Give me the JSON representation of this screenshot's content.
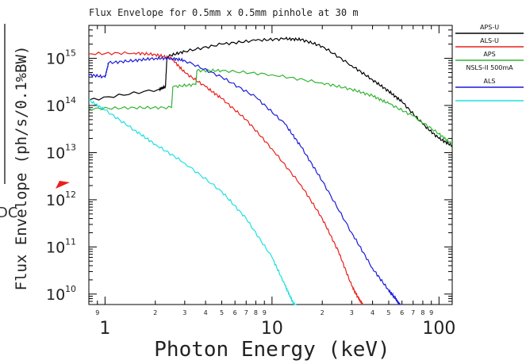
{
  "chart_data": {
    "type": "line",
    "title": "Flux Envelope for 0.5mm x 0.5mm pinhole at 30 m",
    "xlabel": "Photon Energy (keV)",
    "ylabel": "Flux Envelope (ph/s/0.1%BW)",
    "xscale": "log",
    "yscale": "log",
    "xlim": [
      0.8,
      120
    ],
    "ylim": [
      6000000000.0,
      5000000000000000.0
    ],
    "x_major_ticks": [
      {
        "value": 1,
        "label": "1"
      },
      {
        "value": 10,
        "label": "10"
      },
      {
        "value": 100,
        "label": "100"
      }
    ],
    "x_minor_ticks": [
      {
        "value": 0.9,
        "label": "9"
      },
      {
        "value": 2,
        "label": "2"
      },
      {
        "value": 3,
        "label": "3"
      },
      {
        "value": 4,
        "label": "4"
      },
      {
        "value": 5,
        "label": "5"
      },
      {
        "value": 6,
        "label": "6"
      },
      {
        "value": 7,
        "label": "7"
      },
      {
        "value": 8,
        "label": "8"
      },
      {
        "value": 9,
        "label": "9"
      },
      {
        "value": 20,
        "label": "2"
      },
      {
        "value": 30,
        "label": "3"
      },
      {
        "value": 40,
        "label": "4"
      },
      {
        "value": 50,
        "label": "5"
      },
      {
        "value": 60,
        "label": "6"
      },
      {
        "value": 70,
        "label": "7"
      },
      {
        "value": 80,
        "label": "8"
      },
      {
        "value": 90,
        "label": "9"
      }
    ],
    "y_ticks": [
      {
        "value": 10000000000.0,
        "base": "10",
        "exp": "10"
      },
      {
        "value": 100000000000.0,
        "base": "10",
        "exp": "11"
      },
      {
        "value": 1000000000000.0,
        "base": "10",
        "exp": "12"
      },
      {
        "value": 10000000000000.0,
        "base": "10",
        "exp": "13"
      },
      {
        "value": 100000000000000.0,
        "base": "10",
        "exp": "14"
      },
      {
        "value": 1000000000000000.0,
        "base": "10",
        "exp": "15"
      }
    ],
    "legend_position": "right",
    "series": [
      {
        "name": "APS-U",
        "color": "#000000",
        "x": [
          0.8,
          2.1,
          2.3,
          2.35,
          3,
          5,
          8,
          12,
          15,
          20,
          30,
          40,
          50,
          60,
          80,
          100,
          120
        ],
        "y": [
          130000000000000.0,
          220000000000000.0,
          250000000000000.0,
          1100000000000000.0,
          1400000000000000.0,
          2000000000000000.0,
          2400000000000000.0,
          2600000000000000.0,
          2500000000000000.0,
          1800000000000000.0,
          700000000000000.0,
          350000000000000.0,
          200000000000000.0,
          120000000000000.0,
          40000000000000.0,
          20000000000000.0,
          14000000000000.0
        ]
      },
      {
        "name": "ALS-U",
        "color": "#e8201a",
        "x": [
          0.8,
          1.5,
          2,
          2.5,
          3,
          4,
          5,
          7,
          10,
          15,
          20,
          25,
          30,
          33,
          35
        ],
        "y": [
          1250000000000000.0,
          1300000000000000.0,
          1200000000000000.0,
          1000000000000000.0,
          500000000000000.0,
          250000000000000.0,
          140000000000000.0,
          50000000000000.0,
          12000000000000.0,
          2000000000000.0,
          400000000000.0,
          80000000000.0,
          15000000000.0,
          8000000000.0,
          6000000000.0
        ]
      },
      {
        "name": "APS",
        "color": "#34b434",
        "x": [
          0.8,
          1.5,
          2.5,
          2.55,
          3.5,
          3.55,
          5,
          10,
          20,
          30,
          40,
          50,
          70,
          100,
          120
        ],
        "y": [
          85000000000000.0,
          90000000000000.0,
          90000000000000.0,
          250000000000000.0,
          280000000000000.0,
          550000000000000.0,
          550000000000000.0,
          450000000000000.0,
          300000000000000.0,
          220000000000000.0,
          160000000000000.0,
          110000000000000.0,
          60000000000000.0,
          25000000000000.0,
          15000000000000.0
        ]
      },
      {
        "name": "NSLS-II 500mA",
        "color": "#ffffff",
        "x": [],
        "y": []
      },
      {
        "name": "ALS",
        "color": "#1a1ad8",
        "x": [
          0.8,
          1,
          1.05,
          1.5,
          2,
          2.5,
          3,
          5,
          8,
          12,
          15,
          20,
          30,
          40,
          50,
          55,
          58,
          60
        ],
        "y": [
          450000000000000.0,
          400000000000000.0,
          800000000000000.0,
          900000000000000.0,
          1000000000000000.0,
          1000000000000000.0,
          900000000000000.0,
          400000000000000.0,
          150000000000000.0,
          40000000000000.0,
          13000000000000.0,
          2500000000000.0,
          200000000000.0,
          35000000000.0,
          12000000000.0,
          8000000000.0,
          6000000000.0,
          5000000000.0
        ]
      },
      {
        "name": "",
        "color": "#1ee0e0",
        "x": [
          0.8,
          1,
          1.5,
          2,
          3,
          5,
          7,
          10,
          12,
          13,
          14
        ],
        "y": [
          130000000000000.0,
          80000000000000.0,
          30000000000000.0,
          15000000000000.0,
          6000000000000.0,
          1500000000000.0,
          400000000000.0,
          60000000000.0,
          15000000000.0,
          8000000000.0,
          5000000000.0
        ]
      }
    ]
  },
  "left_edge_text": "DC"
}
